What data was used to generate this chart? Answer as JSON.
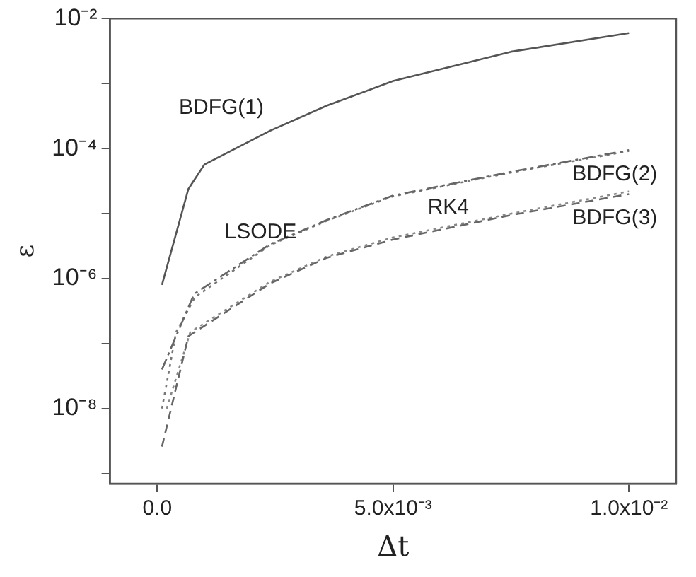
{
  "chart_data": {
    "type": "line",
    "xlabel": "Δt",
    "ylabel": "ε",
    "log": "y",
    "grid": false,
    "legend": false,
    "marker": "none",
    "xlim": [
      -0.001,
      0.011
    ],
    "xticks": [
      {
        "value": 0,
        "label": "0.0"
      },
      {
        "value": 0.005,
        "label": "5.0x10⁻³"
      },
      {
        "value": 0.01,
        "label": "1.0x10⁻²"
      }
    ],
    "ylim": [
      7e-10,
      0.01
    ],
    "yticks": [
      {
        "value": 1e-09,
        "label": null
      },
      {
        "value": 1e-08,
        "label": "10⁻⁸"
      },
      {
        "value": 1e-07,
        "label": null
      },
      {
        "value": 1e-06,
        "label": "10⁻⁶"
      },
      {
        "value": 1e-05,
        "label": null
      },
      {
        "value": 0.0001,
        "label": "10⁻⁴"
      },
      {
        "value": 0.001,
        "label": null
      },
      {
        "value": 0.01,
        "label": "10⁻²"
      }
    ],
    "series": [
      {
        "name": "BDFG(1)",
        "color": "#555555",
        "line_style": "solid",
        "x": [
          0.0001,
          0.00066,
          0.001,
          0.0024,
          0.0036,
          0.005,
          0.0075,
          0.01
        ],
        "values": [
          8e-07,
          2.4e-05,
          5.7e-05,
          0.00019,
          0.00046,
          0.0011,
          0.0031,
          0.006
        ]
      },
      {
        "name": "LSODE",
        "color": "#666666",
        "line_style": "dashdot",
        "x": [
          0.0001,
          0.00078,
          0.0024,
          0.0036,
          0.005,
          0.0075,
          0.01
        ],
        "values": [
          4e-08,
          5.8e-07,
          3.4e-06,
          8e-06,
          1.9e-05,
          4.4e-05,
          9.5e-05
        ]
      },
      {
        "name": "RK4",
        "color": "#777777",
        "line_style": "dotted",
        "x": [
          0.0001,
          0.0004,
          0.0008,
          0.0024,
          0.0036,
          0.005,
          0.0075,
          0.01
        ],
        "values": [
          1e-08,
          1.5e-07,
          5.2e-07,
          3.3e-06,
          7.8e-06,
          1.85e-05,
          4.3e-05,
          9.2e-05
        ]
      },
      {
        "name": "BDFG(3)",
        "color": "#666666",
        "line_style": "dashed",
        "x": [
          0.0001,
          0.00066,
          0.0024,
          0.0036,
          0.005,
          0.0075,
          0.01
        ],
        "values": [
          2.6e-09,
          1.3e-07,
          8.5e-07,
          2.1e-06,
          4e-06,
          9.5e-06,
          2e-05
        ]
      },
      {
        "name": "BDFG(2)",
        "color": "#888888",
        "line_style": "dotted",
        "x": [
          0.0002,
          0.0007,
          0.0024,
          0.0036,
          0.005,
          0.0075,
          0.01
        ],
        "values": [
          1e-08,
          1.5e-07,
          9e-07,
          2.2e-06,
          4.3e-06,
          1e-05,
          2.2e-05
        ]
      }
    ]
  }
}
